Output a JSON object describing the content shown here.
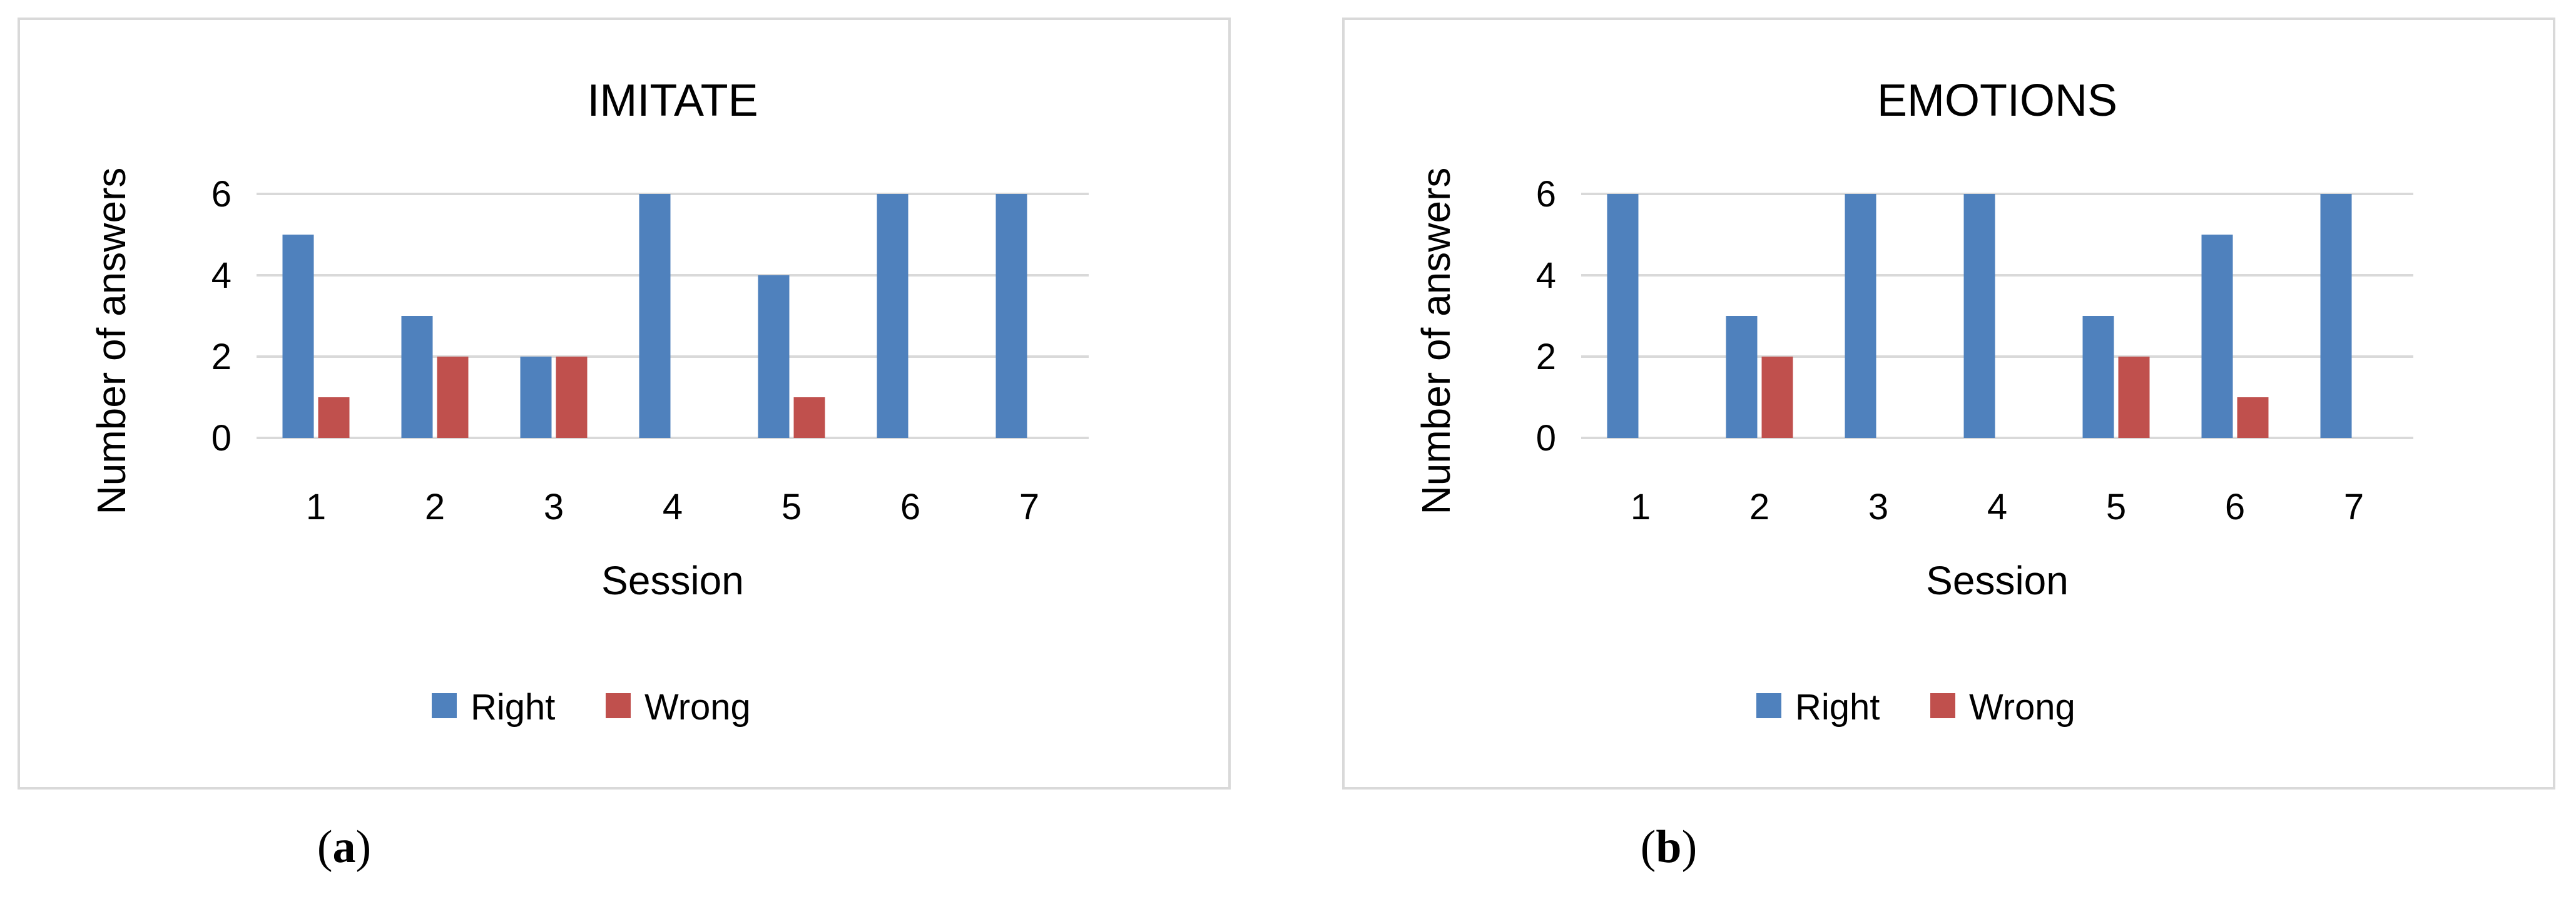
{
  "colors": {
    "right": "#4f81bd",
    "wrong": "#c0504d",
    "gridline": "#d9d9d9",
    "frame": "#d9d9d9"
  },
  "captions": {
    "a": {
      "open": "(",
      "letter": "a",
      "close": ")"
    },
    "b": {
      "open": "(",
      "letter": "b",
      "close": ")"
    }
  },
  "chart_data": [
    {
      "type": "bar",
      "title": "IMITATE",
      "xlabel": "Session",
      "ylabel": "Number of answers",
      "categories": [
        "1",
        "2",
        "3",
        "4",
        "5",
        "6",
        "7"
      ],
      "series": [
        {
          "name": "Right",
          "values": [
            5,
            3,
            2,
            6,
            4,
            6,
            6
          ]
        },
        {
          "name": "Wrong",
          "values": [
            1,
            2,
            2,
            0,
            1,
            0,
            0
          ]
        }
      ],
      "ylim": [
        0,
        6
      ],
      "yticks": [
        0,
        2,
        4,
        6
      ],
      "grid": true,
      "legend": "bottom"
    },
    {
      "type": "bar",
      "title": "EMOTIONS",
      "xlabel": "Session",
      "ylabel": "Number of answers",
      "categories": [
        "1",
        "2",
        "3",
        "4",
        "5",
        "6",
        "7"
      ],
      "series": [
        {
          "name": "Right",
          "values": [
            6,
            3,
            6,
            6,
            3,
            5,
            6
          ]
        },
        {
          "name": "Wrong",
          "values": [
            0,
            2,
            0,
            0,
            2,
            1,
            0
          ]
        }
      ],
      "ylim": [
        0,
        6
      ],
      "yticks": [
        0,
        2,
        4,
        6
      ],
      "grid": true,
      "legend": "bottom"
    }
  ]
}
